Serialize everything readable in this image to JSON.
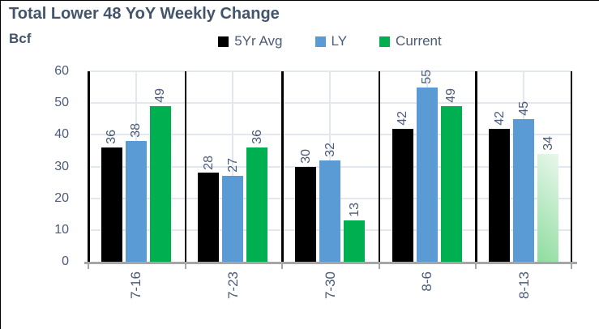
{
  "title": "Total Lower 48 YoY Weekly Change",
  "unit_label": "Bcf",
  "legend": [
    {
      "label": "5Yr Avg",
      "color": "#000000"
    },
    {
      "label": "LY",
      "color": "#5B9BD5"
    },
    {
      "label": "Current",
      "color": "#00B050"
    }
  ],
  "chart_data": {
    "type": "bar",
    "title": "Total Lower 48 YoY Weekly Change",
    "ylabel": "Bcf",
    "xlabel": "",
    "categories": [
      "7-16",
      "7-23",
      "7-30",
      "8-6",
      "8-13"
    ],
    "series": [
      {
        "name": "5Yr Avg",
        "color": "#000000",
        "values": [
          36,
          28,
          30,
          42,
          42
        ]
      },
      {
        "name": "LY",
        "color": "#5B9BD5",
        "values": [
          38,
          27,
          32,
          55,
          45
        ]
      },
      {
        "name": "Current",
        "color": "#00B050",
        "values": [
          49,
          36,
          13,
          49,
          34
        ]
      }
    ],
    "ylim": [
      0,
      60
    ],
    "yticks": [
      0,
      10,
      20,
      30,
      40,
      50,
      60
    ],
    "grid": true,
    "legend_position": "top",
    "value_labels": "rotated-90-above-bars",
    "category_labels": "rotated-90-below-axis",
    "group_separator_lines": true,
    "highlight": {
      "series": "Current",
      "category": "8-13",
      "style": "light-green-gradient",
      "gradient_light": "#E9F7EC",
      "gradient_dark": "#8EDC9E"
    },
    "colors": {
      "text": "#44546A",
      "axis_labels": "#4C5C77",
      "gridline": "#E3E8EF",
      "axis_line": "#A6A6A6",
      "separator": "#000000"
    }
  }
}
